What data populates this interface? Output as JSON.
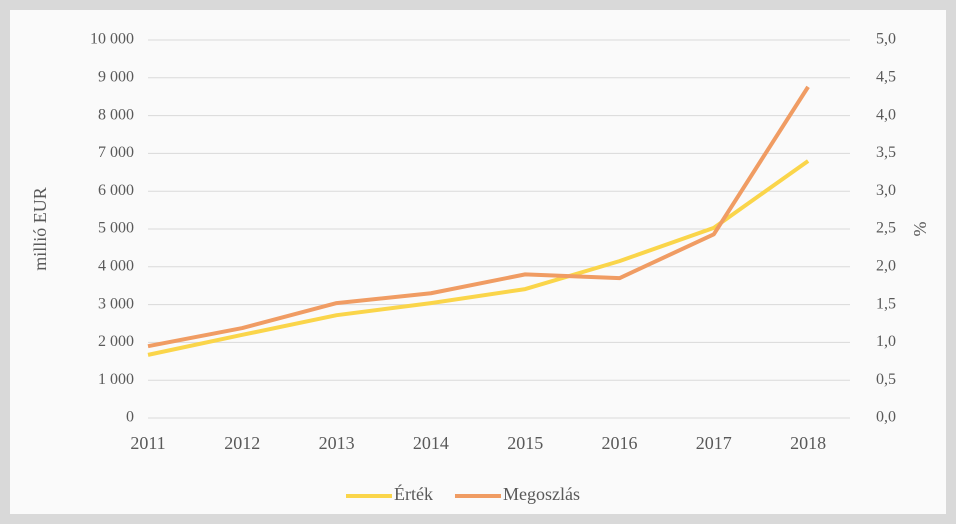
{
  "chart_data": {
    "type": "line",
    "categories": [
      "2011",
      "2012",
      "2013",
      "2014",
      "2015",
      "2016",
      "2017",
      "2018"
    ],
    "series": [
      {
        "name": "Érték",
        "color": "#fad54a",
        "values": [
          1670,
          2200,
          2720,
          3040,
          3410,
          4150,
          5030,
          6800
        ]
      },
      {
        "name": "Megoszlás",
        "color": "#f09c63",
        "axis": "y2",
        "values": [
          0.95,
          1.19,
          1.52,
          1.65,
          1.9,
          1.85,
          2.43,
          4.38
        ]
      }
    ],
    "ylabel": "millió EUR",
    "y2label": "%",
    "ylim": [
      0,
      10000
    ],
    "yticks": [
      0,
      {
        "value": 1000,
        "label": "1 000"
      },
      {
        "value": 2000,
        "label": "2 000"
      },
      {
        "value": 3000,
        "label": "3 000"
      },
      {
        "value": 4000,
        "label": "4 000"
      },
      {
        "value": 5000,
        "label": "5 000"
      },
      {
        "value": 6000,
        "label": "6 000"
      },
      {
        "value": 7000,
        "label": "7 000"
      },
      {
        "value": 8000,
        "label": "8 000"
      },
      {
        "value": 9000,
        "label": "9 000"
      },
      {
        "value": 10000,
        "label": "10 000"
      }
    ],
    "y2lim": [
      0,
      5
    ],
    "y2ticks": [
      {
        "value": 0,
        "label": "0,0"
      },
      {
        "value": 0.5,
        "label": "0,5"
      },
      {
        "value": 1,
        "label": "1,0"
      },
      {
        "value": 1.5,
        "label": "1,5"
      },
      {
        "value": 2,
        "label": "2,0"
      },
      {
        "value": 2.5,
        "label": "2,5"
      },
      {
        "value": 3,
        "label": "3,0"
      },
      {
        "value": 3.5,
        "label": "3,5"
      },
      {
        "value": 4,
        "label": "4,0"
      },
      {
        "value": 4.5,
        "label": "4,5"
      },
      {
        "value": 5,
        "label": "5,0"
      }
    ],
    "grid": true,
    "legend": "bottom"
  }
}
